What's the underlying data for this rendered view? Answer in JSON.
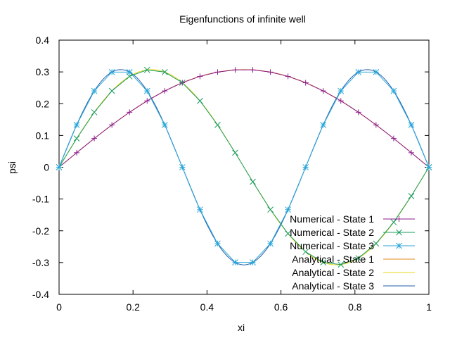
{
  "chart_data": {
    "type": "line",
    "title": "Eigenfunctions of infinite well",
    "xlabel": "xi",
    "ylabel": "psi",
    "xlim": [
      0,
      1
    ],
    "ylim": [
      -0.4,
      0.4
    ],
    "xticks": [
      "0",
      "0.2",
      "0.4",
      "0.6",
      "0.8",
      "1"
    ],
    "xtick_values": [
      0,
      0.2,
      0.4,
      0.6,
      0.8,
      1
    ],
    "yticks": [
      "0.4",
      "0.3",
      "0.2",
      "0.1",
      "0",
      "-0.1",
      "-0.2",
      "-0.3",
      "-0.4"
    ],
    "ytick_values": [
      0.4,
      0.3,
      0.2,
      0.1,
      0,
      -0.1,
      -0.2,
      -0.3,
      -0.4
    ],
    "grid": false,
    "legend_position": "bottom-right",
    "amplitude": 0.3072,
    "series": [
      {
        "name": "Numerical - State 1",
        "state": 1,
        "kind": "numerical",
        "marker": "plus",
        "color": "#8b1a8b"
      },
      {
        "name": "Numerical - State 2",
        "state": 2,
        "kind": "numerical",
        "marker": "cross",
        "color": "#1a9b5c"
      },
      {
        "name": "Numerical - State 3",
        "state": 3,
        "kind": "numerical",
        "marker": "star",
        "color": "#2aa6d9"
      },
      {
        "name": "Analytical - State 1",
        "state": 1,
        "kind": "analytical",
        "marker": "none",
        "color": "#e08a1a"
      },
      {
        "name": "Analytical - State 2",
        "state": 2,
        "kind": "analytical",
        "marker": "none",
        "color": "#e8d81a"
      },
      {
        "name": "Analytical - State 3",
        "state": 3,
        "kind": "analytical",
        "marker": "none",
        "color": "#1f5fa8"
      }
    ],
    "numerical_x": [
      0,
      0.0476,
      0.0952,
      0.1429,
      0.1905,
      0.2381,
      0.2857,
      0.3333,
      0.381,
      0.4286,
      0.4762,
      0.5238,
      0.5714,
      0.619,
      0.6667,
      0.7143,
      0.7619,
      0.8095,
      0.8571,
      0.9048,
      0.9524,
      1
    ]
  }
}
